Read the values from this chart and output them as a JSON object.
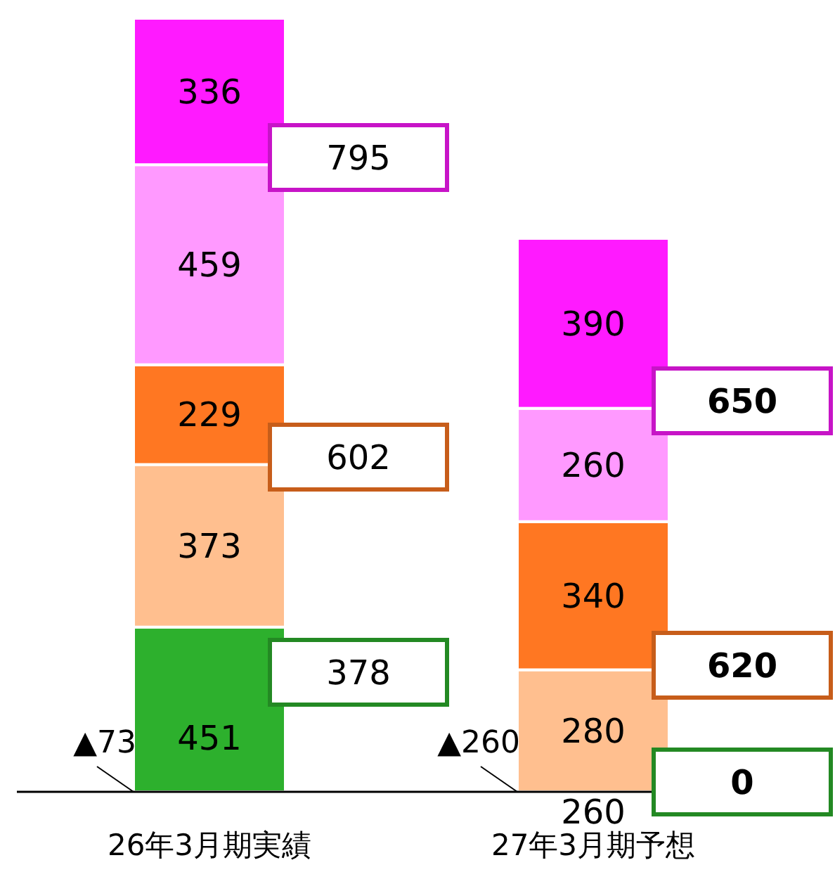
{
  "chart_data": {
    "type": "bar",
    "stacked": true,
    "categories": [
      "26年3月期実績",
      "27年3月期予想"
    ],
    "series": [
      {
        "color": "#2db02d",
        "values": [
          378,
          0
        ],
        "value_labels": [
          null,
          null
        ]
      },
      {
        "color": "#ffbf8f",
        "values": [
          373,
          280
        ],
        "value_labels": [
          "373",
          "280"
        ]
      },
      {
        "color": "#ff7722",
        "values": [
          229,
          340
        ],
        "value_labels": [
          "229",
          "340"
        ]
      },
      {
        "color": "#ff99ff",
        "values": [
          459,
          260
        ],
        "value_labels": [
          "459",
          "260"
        ]
      },
      {
        "color": "#ff1aff",
        "values": [
          336,
          390
        ],
        "value_labels": [
          "336",
          "390"
        ]
      }
    ],
    "annotations": [
      {
        "text": "▲73",
        "x": "26年3月期実績",
        "y": 0
      },
      {
        "text": "▲260",
        "x": "27年3月期予想",
        "y": 0
      },
      "451",
      {
        "text": "260",
        "x": "27年3月期予想",
        "y": 0
      },
      "378",
      "602",
      "795",
      "0",
      "620",
      "650"
    ]
  }
}
